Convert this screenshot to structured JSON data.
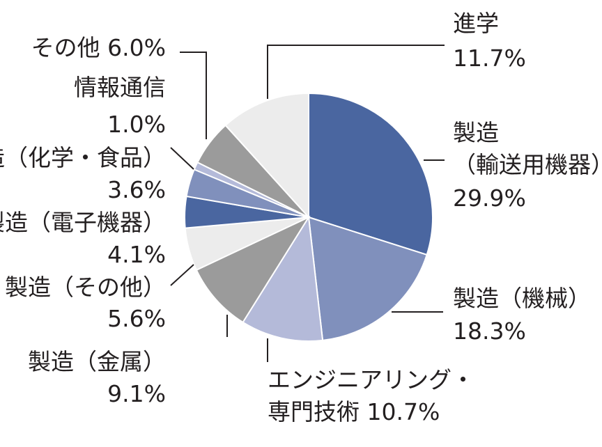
{
  "chart_data": {
    "type": "pie",
    "title": "",
    "start": "12 o'clock",
    "direction": "clockwise",
    "slices": [
      {
        "label": "製造（輸送用機器）",
        "label_lines": [
          "製造",
          "（輸送用機器）"
        ],
        "value": 29.9,
        "value_text": "29.9%",
        "color": "#4a66a0"
      },
      {
        "label": "製造（機械）",
        "label_lines": [
          "製造（機械）"
        ],
        "value": 18.3,
        "value_text": "18.3%",
        "color": "#8090bc"
      },
      {
        "label": "エンジニアリング・専門技術",
        "label_lines": [
          "エンジニアリング・",
          "専門技術"
        ],
        "value": 10.7,
        "value_text": "10.7%",
        "color": "#b4bad9"
      },
      {
        "label": "製造（金属）",
        "label_lines": [
          "製造（金属）"
        ],
        "value": 9.1,
        "value_text": "9.1%",
        "color": "#9b9b9b"
      },
      {
        "label": "製造（その他）",
        "label_lines": [
          "製造（その他）"
        ],
        "value": 5.6,
        "value_text": "5.6%",
        "color": "#ececec"
      },
      {
        "label": "製造（電子機器）",
        "label_lines": [
          "製造（電子機器）"
        ],
        "value": 4.1,
        "value_text": "4.1%",
        "color": "#4a66a0"
      },
      {
        "label": "製造（化学・食品）",
        "label_lines": [
          "製造（化学・食品）"
        ],
        "value": 3.6,
        "value_text": "3.6%",
        "color": "#8090bc"
      },
      {
        "label": "情報通信",
        "label_lines": [
          "情報通信"
        ],
        "value": 1.0,
        "value_text": "1.0%",
        "color": "#b4bad9"
      },
      {
        "label": "その他",
        "label_lines": [
          "その他"
        ],
        "value": 6.0,
        "value_text": "6.0%",
        "color": "#9b9b9b"
      },
      {
        "label": "進学",
        "label_lines": [
          "進学"
        ],
        "value": 11.7,
        "value_text": "11.7%",
        "color": "#ececec"
      }
    ]
  }
}
